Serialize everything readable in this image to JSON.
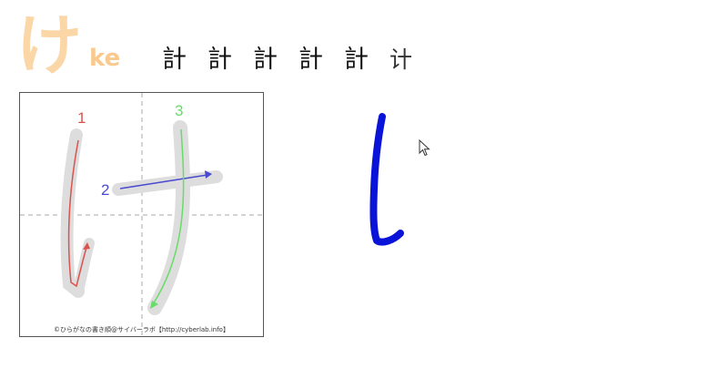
{
  "lesson": {
    "kana": "け",
    "romaji": "ke",
    "kana_color": "#fbd6a6",
    "romaji_color": "#f9c98d"
  },
  "kanji_samples": [
    "計",
    "計",
    "計",
    "計",
    "計",
    "计"
  ],
  "diagram": {
    "stroke_numbers": [
      "1",
      "2",
      "3"
    ],
    "stroke_colors": [
      "#d9534f",
      "#4a4ad0",
      "#66dd66"
    ],
    "credit": "©ひらがなの書き順@サイバーラボ【http://cyberlab.info】"
  },
  "drawing": {
    "ink_color": "#0a14d8"
  }
}
